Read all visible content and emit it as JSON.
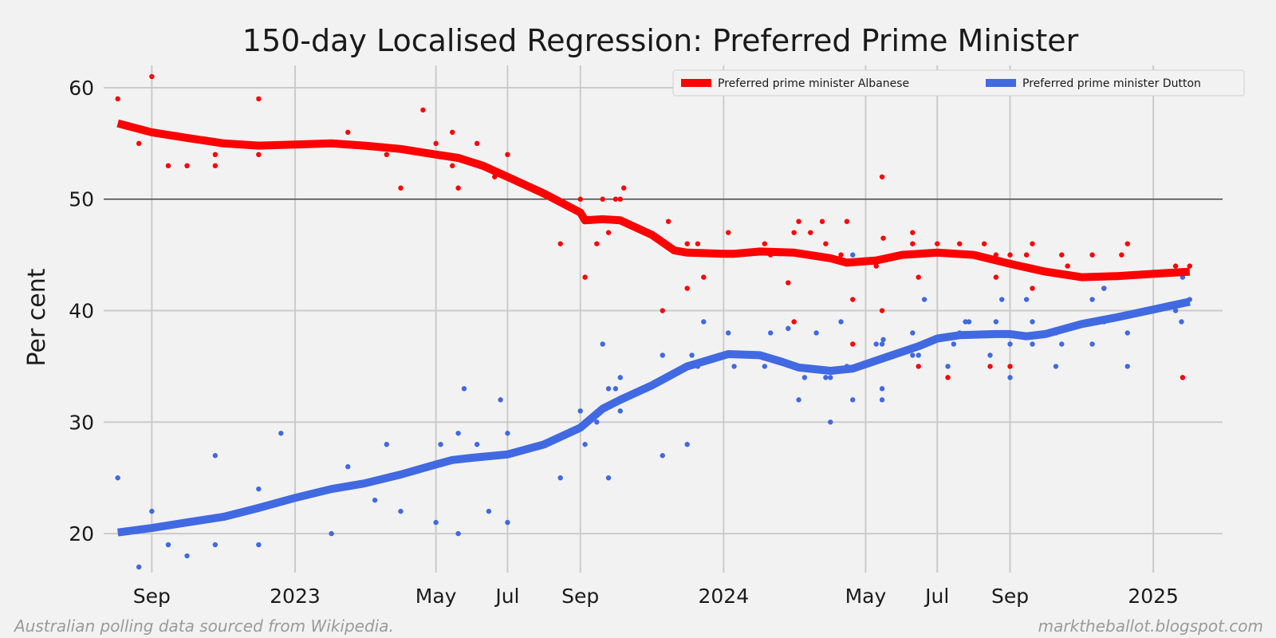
{
  "chart_data": {
    "type": "line",
    "title": "150-day Localised Regression: Preferred Prime Minister",
    "ylabel": "Per cent",
    "xlabel": "",
    "x_range": [
      "2022-07-22",
      "2025-03-01"
    ],
    "ylim": [
      16.5,
      62
    ],
    "yticks": [
      20,
      30,
      40,
      50,
      60
    ],
    "xticks": [
      {
        "date": "2022-09-01",
        "label": "Sep"
      },
      {
        "date": "2023-01-01",
        "label": "2023"
      },
      {
        "date": "2023-05-01",
        "label": "May"
      },
      {
        "date": "2023-07-01",
        "label": "Jul"
      },
      {
        "date": "2023-09-01",
        "label": "Sep"
      },
      {
        "date": "2024-01-01",
        "label": "2024"
      },
      {
        "date": "2024-05-01",
        "label": "May"
      },
      {
        "date": "2024-07-01",
        "label": "Jul"
      },
      {
        "date": "2024-09-01",
        "label": "Sep"
      },
      {
        "date": "2025-01-01",
        "label": "2025"
      }
    ],
    "reference_line": 50,
    "grid": true,
    "legend_position": "top-right",
    "series": [
      {
        "name": "Preferred prime minister Albanese",
        "color": "#ff0000",
        "trend": [
          [
            "2022-08-03",
            56.8
          ],
          [
            "2022-09-01",
            56.0
          ],
          [
            "2022-10-01",
            55.5
          ],
          [
            "2022-11-01",
            55.0
          ],
          [
            "2022-12-01",
            54.8
          ],
          [
            "2023-01-01",
            54.9
          ],
          [
            "2023-02-01",
            55.0
          ],
          [
            "2023-03-01",
            54.8
          ],
          [
            "2023-04-01",
            54.5
          ],
          [
            "2023-05-01",
            54.0
          ],
          [
            "2023-05-20",
            53.7
          ],
          [
            "2023-06-10",
            53.0
          ],
          [
            "2023-07-01",
            52.0
          ],
          [
            "2023-08-01",
            50.5
          ],
          [
            "2023-09-01",
            48.8
          ],
          [
            "2023-09-05",
            48.1
          ],
          [
            "2023-09-20",
            48.2
          ],
          [
            "2023-10-05",
            48.1
          ],
          [
            "2023-11-01",
            46.8
          ],
          [
            "2023-11-20",
            45.4
          ],
          [
            "2023-12-01",
            45.2
          ],
          [
            "2024-01-01",
            45.1
          ],
          [
            "2024-01-10",
            45.1
          ],
          [
            "2024-02-01",
            45.3
          ],
          [
            "2024-03-01",
            45.2
          ],
          [
            "2024-04-01",
            44.7
          ],
          [
            "2024-04-15",
            44.3
          ],
          [
            "2024-05-10",
            44.5
          ],
          [
            "2024-06-01",
            45.0
          ],
          [
            "2024-07-01",
            45.2
          ],
          [
            "2024-08-01",
            45.0
          ],
          [
            "2024-09-01",
            44.2
          ],
          [
            "2024-10-01",
            43.5
          ],
          [
            "2024-11-01",
            43.0
          ],
          [
            "2024-12-01",
            43.1
          ],
          [
            "2025-01-01",
            43.3
          ],
          [
            "2025-02-01",
            43.5
          ]
        ],
        "points": [
          [
            "2022-08-03",
            59
          ],
          [
            "2022-08-21",
            55
          ],
          [
            "2022-09-01",
            61
          ],
          [
            "2022-09-15",
            53
          ],
          [
            "2022-10-01",
            53
          ],
          [
            "2022-10-25",
            54
          ],
          [
            "2022-10-25",
            53
          ],
          [
            "2022-12-01",
            59
          ],
          [
            "2022-12-01",
            54
          ],
          [
            "2023-02-15",
            56
          ],
          [
            "2023-03-20",
            54
          ],
          [
            "2023-04-01",
            51
          ],
          [
            "2023-04-20",
            58
          ],
          [
            "2023-05-01",
            55
          ],
          [
            "2023-05-15",
            56
          ],
          [
            "2023-05-15",
            53
          ],
          [
            "2023-05-20",
            51
          ],
          [
            "2023-06-05",
            55
          ],
          [
            "2023-06-20",
            52
          ],
          [
            "2023-07-01",
            54
          ],
          [
            "2023-08-15",
            46
          ],
          [
            "2023-09-01",
            50
          ],
          [
            "2023-09-05",
            43
          ],
          [
            "2023-09-15",
            46
          ],
          [
            "2023-09-20",
            50
          ],
          [
            "2023-09-25",
            47
          ],
          [
            "2023-10-01",
            50
          ],
          [
            "2023-10-05",
            50
          ],
          [
            "2023-10-08",
            51
          ],
          [
            "2023-11-10",
            46
          ],
          [
            "2023-11-10",
            40
          ],
          [
            "2023-11-15",
            48
          ],
          [
            "2023-12-01",
            42
          ],
          [
            "2023-12-01",
            46
          ],
          [
            "2023-12-10",
            46
          ],
          [
            "2023-12-15",
            43
          ],
          [
            "2024-01-05",
            47
          ],
          [
            "2024-02-05",
            46
          ],
          [
            "2024-02-10",
            45
          ],
          [
            "2024-02-25",
            42.5
          ],
          [
            "2024-03-01",
            39
          ],
          [
            "2024-03-01",
            47
          ],
          [
            "2024-03-05",
            48
          ],
          [
            "2024-03-15",
            47
          ],
          [
            "2024-03-25",
            48
          ],
          [
            "2024-03-28",
            46
          ],
          [
            "2024-04-10",
            45
          ],
          [
            "2024-04-15",
            48
          ],
          [
            "2024-04-20",
            41
          ],
          [
            "2024-04-20",
            37
          ],
          [
            "2024-05-10",
            44
          ],
          [
            "2024-05-15",
            40
          ],
          [
            "2024-05-15",
            52
          ],
          [
            "2024-05-16",
            46.5
          ],
          [
            "2024-06-10",
            47
          ],
          [
            "2024-06-10",
            46
          ],
          [
            "2024-06-15",
            35
          ],
          [
            "2024-06-15",
            43
          ],
          [
            "2024-07-01",
            46
          ],
          [
            "2024-07-10",
            34
          ],
          [
            "2024-07-20",
            46
          ],
          [
            "2024-08-10",
            46
          ],
          [
            "2024-08-15",
            35
          ],
          [
            "2024-08-20",
            45
          ],
          [
            "2024-08-20",
            43
          ],
          [
            "2024-09-01",
            45
          ],
          [
            "2024-09-01",
            35
          ],
          [
            "2024-09-15",
            45
          ],
          [
            "2024-09-20",
            46
          ],
          [
            "2024-09-20",
            42
          ],
          [
            "2024-10-10",
            38
          ],
          [
            "2024-10-15",
            45
          ],
          [
            "2024-10-20",
            44
          ],
          [
            "2024-11-10",
            45
          ],
          [
            "2024-11-20",
            42
          ],
          [
            "2024-12-05",
            45
          ],
          [
            "2024-12-10",
            46
          ],
          [
            "2025-01-20",
            44
          ],
          [
            "2025-01-26",
            34
          ],
          [
            "2025-02-01",
            44
          ]
        ]
      },
      {
        "name": "Preferred prime minister Dutton",
        "color": "#4169e1",
        "trend": [
          [
            "2022-08-03",
            20.1
          ],
          [
            "2022-09-01",
            20.5
          ],
          [
            "2022-10-01",
            21.0
          ],
          [
            "2022-11-01",
            21.5
          ],
          [
            "2022-12-01",
            22.3
          ],
          [
            "2023-01-01",
            23.2
          ],
          [
            "2023-02-01",
            24.0
          ],
          [
            "2023-03-01",
            24.5
          ],
          [
            "2023-04-01",
            25.3
          ],
          [
            "2023-05-01",
            26.2
          ],
          [
            "2023-05-15",
            26.6
          ],
          [
            "2023-06-01",
            26.8
          ],
          [
            "2023-07-01",
            27.1
          ],
          [
            "2023-08-01",
            28.0
          ],
          [
            "2023-09-01",
            29.5
          ],
          [
            "2023-09-20",
            31.2
          ],
          [
            "2023-10-05",
            32.0
          ],
          [
            "2023-11-01",
            33.3
          ],
          [
            "2023-12-01",
            35.0
          ],
          [
            "2024-01-05",
            36.1
          ],
          [
            "2024-02-01",
            36.0
          ],
          [
            "2024-02-20",
            35.4
          ],
          [
            "2024-03-05",
            34.9
          ],
          [
            "2024-04-01",
            34.6
          ],
          [
            "2024-04-20",
            34.8
          ],
          [
            "2024-05-15",
            35.7
          ],
          [
            "2024-06-15",
            36.8
          ],
          [
            "2024-07-01",
            37.5
          ],
          [
            "2024-07-20",
            37.8
          ],
          [
            "2024-08-20",
            37.9
          ],
          [
            "2024-09-01",
            37.9
          ],
          [
            "2024-09-15",
            37.7
          ],
          [
            "2024-10-01",
            37.9
          ],
          [
            "2024-11-01",
            38.8
          ],
          [
            "2024-12-01",
            39.4
          ],
          [
            "2025-01-01",
            40.1
          ],
          [
            "2025-02-01",
            40.8
          ]
        ],
        "points": [
          [
            "2022-08-03",
            25
          ],
          [
            "2022-08-21",
            17
          ],
          [
            "2022-09-01",
            22
          ],
          [
            "2022-09-15",
            19
          ],
          [
            "2022-10-01",
            18
          ],
          [
            "2022-10-25",
            27
          ],
          [
            "2022-10-25",
            19
          ],
          [
            "2022-12-01",
            24
          ],
          [
            "2022-12-01",
            19
          ],
          [
            "2022-12-20",
            29
          ],
          [
            "2023-02-01",
            20
          ],
          [
            "2023-02-15",
            26
          ],
          [
            "2023-03-10",
            23
          ],
          [
            "2023-03-20",
            28
          ],
          [
            "2023-04-01",
            22
          ],
          [
            "2023-04-20",
            26
          ],
          [
            "2023-05-01",
            21
          ],
          [
            "2023-05-05",
            28
          ],
          [
            "2023-05-20",
            29
          ],
          [
            "2023-05-20",
            20
          ],
          [
            "2023-05-25",
            33
          ],
          [
            "2023-06-05",
            28
          ],
          [
            "2023-06-15",
            22
          ],
          [
            "2023-06-25",
            32
          ],
          [
            "2023-07-01",
            29
          ],
          [
            "2023-07-01",
            21
          ],
          [
            "2023-08-15",
            25
          ],
          [
            "2023-09-01",
            31
          ],
          [
            "2023-09-05",
            28
          ],
          [
            "2023-09-15",
            30
          ],
          [
            "2023-09-20",
            37
          ],
          [
            "2023-09-25",
            33
          ],
          [
            "2023-09-25",
            25
          ],
          [
            "2023-10-01",
            33
          ],
          [
            "2023-10-05",
            34
          ],
          [
            "2023-10-05",
            31
          ],
          [
            "2023-11-10",
            36
          ],
          [
            "2023-11-10",
            27
          ],
          [
            "2023-11-15",
            34
          ],
          [
            "2023-12-01",
            35
          ],
          [
            "2023-12-01",
            28
          ],
          [
            "2023-12-05",
            36
          ],
          [
            "2023-12-10",
            35
          ],
          [
            "2023-12-15",
            39
          ],
          [
            "2024-01-05",
            38
          ],
          [
            "2024-01-10",
            35
          ],
          [
            "2024-02-05",
            35
          ],
          [
            "2024-02-10",
            38
          ],
          [
            "2024-02-25",
            38.4
          ],
          [
            "2024-03-01",
            35
          ],
          [
            "2024-03-05",
            32
          ],
          [
            "2024-03-10",
            34
          ],
          [
            "2024-03-20",
            38
          ],
          [
            "2024-03-28",
            34
          ],
          [
            "2024-04-01",
            30
          ],
          [
            "2024-04-01",
            34
          ],
          [
            "2024-04-10",
            39
          ],
          [
            "2024-04-15",
            35
          ],
          [
            "2024-04-20",
            45
          ],
          [
            "2024-04-20",
            32
          ],
          [
            "2024-05-10",
            37
          ],
          [
            "2024-05-15",
            37
          ],
          [
            "2024-05-15",
            32
          ],
          [
            "2024-05-15",
            33
          ],
          [
            "2024-05-16",
            37.4
          ],
          [
            "2024-06-10",
            36
          ],
          [
            "2024-06-10",
            38
          ],
          [
            "2024-06-15",
            36
          ],
          [
            "2024-06-20",
            41
          ],
          [
            "2024-07-10",
            35
          ],
          [
            "2024-07-15",
            37
          ],
          [
            "2024-07-20",
            38
          ],
          [
            "2024-07-25",
            39
          ],
          [
            "2024-07-28",
            39
          ],
          [
            "2024-08-15",
            36
          ],
          [
            "2024-08-20",
            39
          ],
          [
            "2024-08-25",
            41
          ],
          [
            "2024-09-01",
            37
          ],
          [
            "2024-09-01",
            34
          ],
          [
            "2024-09-15",
            41
          ],
          [
            "2024-09-20",
            39
          ],
          [
            "2024-09-20",
            37
          ],
          [
            "2024-10-10",
            35
          ],
          [
            "2024-10-15",
            37
          ],
          [
            "2024-11-10",
            41
          ],
          [
            "2024-11-10",
            37
          ],
          [
            "2024-11-20",
            39
          ],
          [
            "2024-11-20",
            42
          ],
          [
            "2024-12-10",
            38
          ],
          [
            "2024-12-10",
            35
          ],
          [
            "2025-01-20",
            40
          ],
          [
            "2025-01-25",
            39
          ],
          [
            "2025-01-26",
            43
          ],
          [
            "2025-02-01",
            41
          ]
        ]
      }
    ]
  },
  "footer": {
    "left": "Australian polling data sourced from Wikipedia.",
    "right": "marktheballot.blogspot.com"
  }
}
